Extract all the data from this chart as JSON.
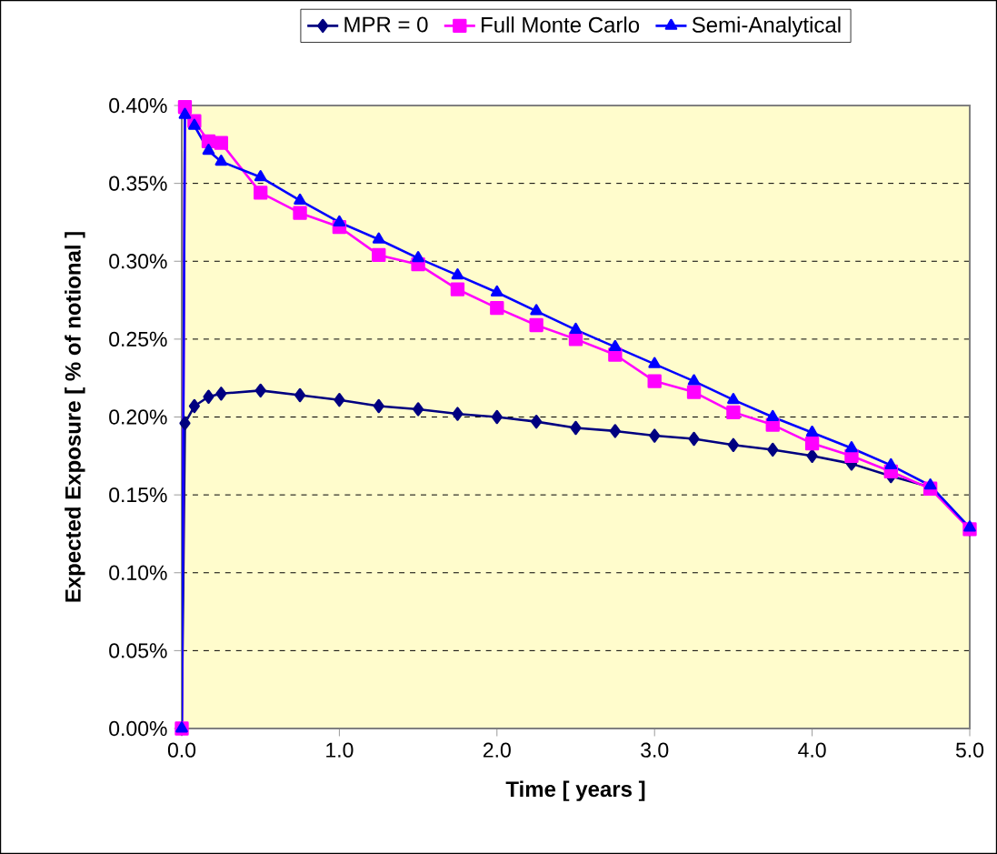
{
  "chart_data": {
    "type": "line",
    "xlabel": "Time  [ years ]",
    "ylabel": "Expected Exposure  [ % of notional ]",
    "x": [
      0,
      0.02,
      0.08,
      0.17,
      0.25,
      0.5,
      0.75,
      1.0,
      1.25,
      1.5,
      1.75,
      2.0,
      2.25,
      2.5,
      2.75,
      3.0,
      3.25,
      3.5,
      3.75,
      4.0,
      4.25,
      4.5,
      4.75,
      5.0
    ],
    "series": [
      {
        "name": "MPR = 0",
        "color": "#000080",
        "marker": "diamond",
        "values": [
          0,
          0.196,
          0.207,
          0.213,
          0.215,
          0.217,
          0.214,
          0.211,
          0.207,
          0.205,
          0.202,
          0.2,
          0.197,
          0.193,
          0.191,
          0.188,
          0.186,
          0.182,
          0.179,
          0.175,
          0.17,
          0.162,
          0.155,
          0.128
        ]
      },
      {
        "name": "Full Monte Carlo",
        "color": "#ff00ff",
        "marker": "square",
        "values": [
          0,
          0.399,
          0.39,
          0.377,
          0.376,
          0.344,
          0.331,
          0.322,
          0.304,
          0.298,
          0.282,
          0.27,
          0.259,
          0.25,
          0.24,
          0.223,
          0.216,
          0.203,
          0.195,
          0.183,
          0.175,
          0.165,
          0.154,
          0.128
        ]
      },
      {
        "name": "Semi-Analytical",
        "color": "#0000ff",
        "marker": "triangle",
        "values": [
          0,
          0.394,
          0.387,
          0.371,
          0.364,
          0.354,
          0.339,
          0.325,
          0.314,
          0.302,
          0.291,
          0.28,
          0.268,
          0.256,
          0.245,
          0.234,
          0.223,
          0.211,
          0.2,
          0.19,
          0.18,
          0.169,
          0.156,
          0.129
        ]
      }
    ],
    "xlim": [
      0,
      5
    ],
    "xticks": [
      {
        "value": 0,
        "label": "0.0"
      },
      {
        "value": 1,
        "label": "1.0"
      },
      {
        "value": 2,
        "label": "2.0"
      },
      {
        "value": 3,
        "label": "3.0"
      },
      {
        "value": 4,
        "label": "4.0"
      },
      {
        "value": 5,
        "label": "5.0"
      }
    ],
    "ylim": [
      0,
      0.4
    ],
    "yticks": [
      {
        "value": 0,
        "label": "0.00%"
      },
      {
        "value": 0.05,
        "label": "0.05%"
      },
      {
        "value": 0.1,
        "label": "0.10%"
      },
      {
        "value": 0.15,
        "label": "0.15%"
      },
      {
        "value": 0.2,
        "label": "0.20%"
      },
      {
        "value": 0.25,
        "label": "0.25%"
      },
      {
        "value": 0.3,
        "label": "0.30%"
      },
      {
        "value": 0.35,
        "label": "0.35%"
      },
      {
        "value": 0.4,
        "label": "0.40%"
      }
    ],
    "grid": "y",
    "legend": "top",
    "line_style": "solid"
  }
}
